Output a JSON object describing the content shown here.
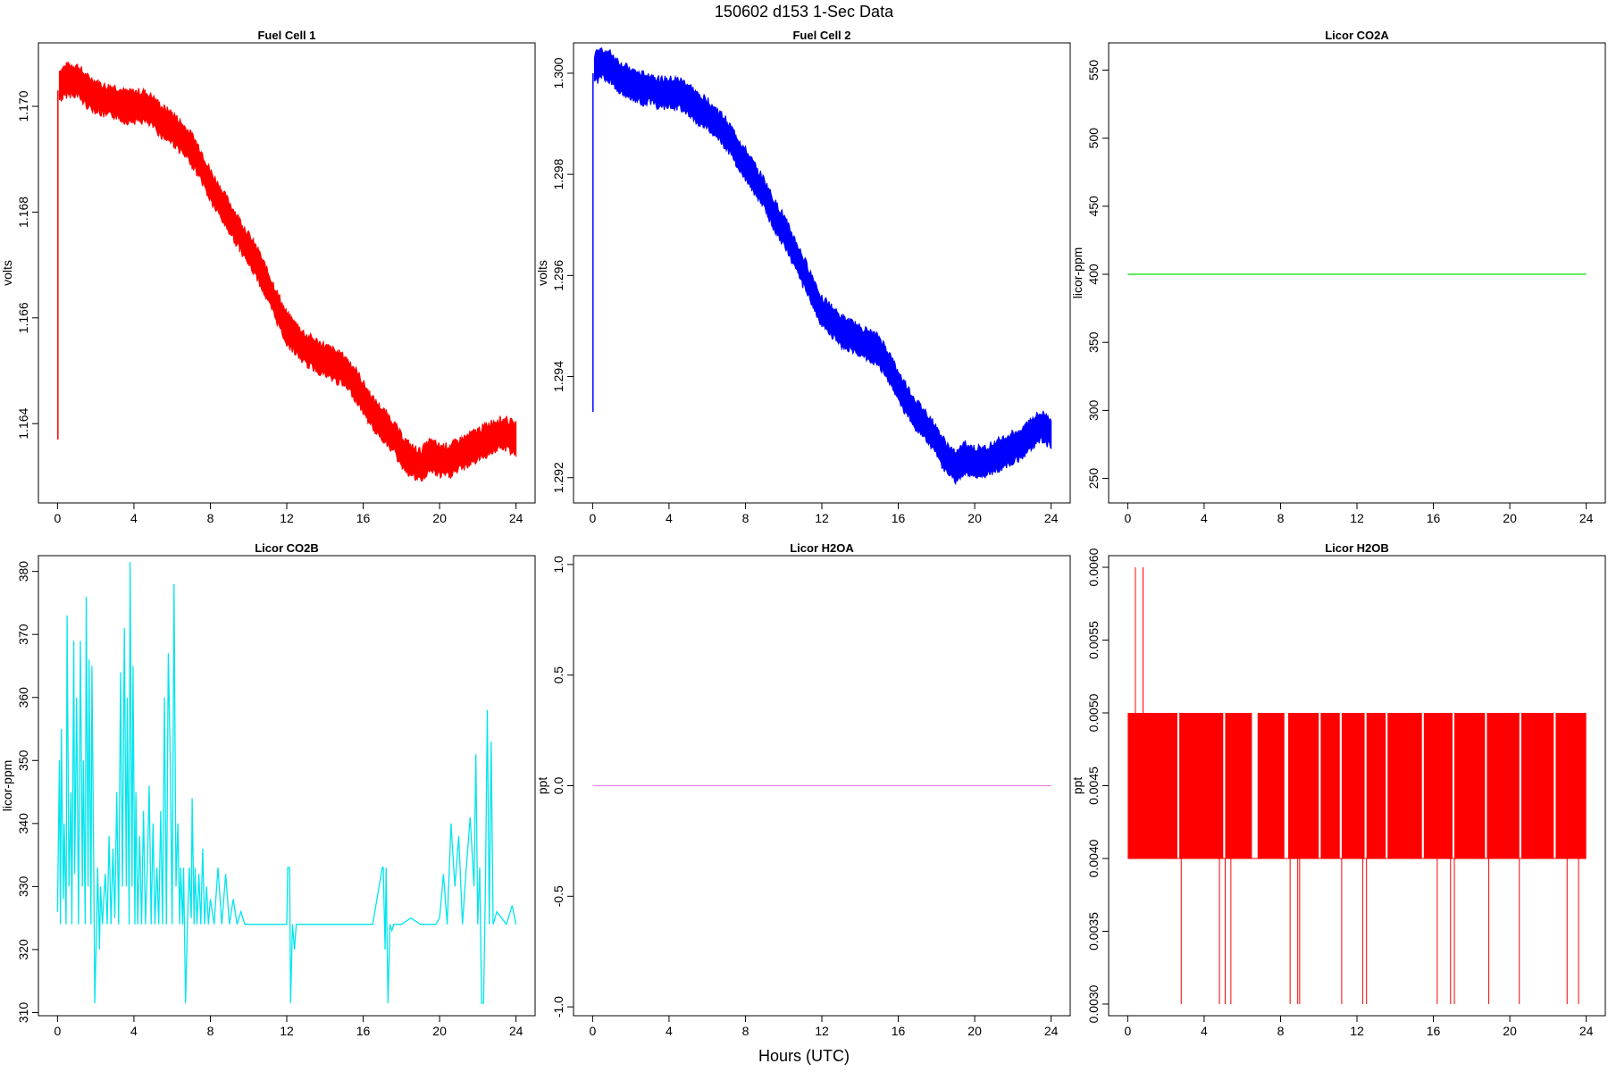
{
  "figure": {
    "title": "150602   d153   1-Sec Data",
    "xlabel": "Hours (UTC)"
  },
  "chart_data": [
    {
      "type": "line",
      "title": "Fuel Cell 1",
      "ylabel": "volts",
      "color": "#ff0000",
      "band_width": 0.0007,
      "xlim": [
        -1,
        25
      ],
      "ylim": [
        1.1625,
        1.1712
      ],
      "xticks": [
        0,
        4,
        8,
        12,
        16,
        20,
        24
      ],
      "xtick_labels": [
        "0",
        "4",
        "8",
        "12",
        "16",
        "20",
        "24"
      ],
      "yticks": [
        1.164,
        1.166,
        1.168,
        1.17
      ],
      "ytick_labels": [
        "1.164",
        "1.166",
        "1.168",
        "1.170"
      ],
      "spike": {
        "x": 0.02,
        "from": 1.1637,
        "to": 1.1703
      },
      "x": [
        0.1,
        0.5,
        1,
        1.5,
        2,
        2.5,
        3,
        3.5,
        4,
        4.5,
        5,
        5.5,
        6,
        6.5,
        7,
        7.5,
        8,
        8.5,
        9,
        9.5,
        10,
        10.5,
        11,
        11.5,
        12,
        12.5,
        13,
        13.5,
        14,
        14.5,
        15,
        15.5,
        16,
        16.5,
        17,
        17.5,
        18,
        18.5,
        19,
        19.5,
        20,
        20.5,
        21,
        21.5,
        22,
        22.5,
        23,
        23.5,
        24
      ],
      "y": [
        1.1704,
        1.1705,
        1.1705,
        1.1703,
        1.1702,
        1.1701,
        1.1701,
        1.17,
        1.17,
        1.17,
        1.1699,
        1.1697,
        1.1696,
        1.1694,
        1.1692,
        1.1689,
        1.1685,
        1.1682,
        1.1679,
        1.1676,
        1.1673,
        1.167,
        1.1666,
        1.1662,
        1.1658,
        1.1656,
        1.1654,
        1.1653,
        1.1652,
        1.1651,
        1.165,
        1.1648,
        1.1645,
        1.1642,
        1.164,
        1.1638,
        1.1635,
        1.1633,
        1.1632,
        1.1634,
        1.1633,
        1.1633,
        1.1634,
        1.1635,
        1.1636,
        1.1637,
        1.1638,
        1.1638,
        1.1637
      ]
    },
    {
      "type": "line",
      "title": "Fuel Cell 2",
      "ylabel": "volts",
      "color": "#0000ff",
      "band_width": 0.0007,
      "xlim": [
        -1,
        25
      ],
      "ylim": [
        1.2915,
        1.3006
      ],
      "xticks": [
        0,
        4,
        8,
        12,
        16,
        20,
        24
      ],
      "xtick_labels": [
        "0",
        "4",
        "8",
        "12",
        "16",
        "20",
        "24"
      ],
      "yticks": [
        1.292,
        1.294,
        1.296,
        1.298,
        1.3
      ],
      "ytick_labels": [
        "1.292",
        "1.294",
        "1.296",
        "1.298",
        "1.300"
      ],
      "spike": {
        "x": 0.02,
        "from": 1.2933,
        "to": 1.3
      },
      "x": [
        0.1,
        0.5,
        1,
        1.5,
        2,
        2.5,
        3,
        3.5,
        4,
        4.5,
        5,
        5.5,
        6,
        6.5,
        7,
        7.5,
        8,
        8.5,
        9,
        9.5,
        10,
        10.5,
        11,
        11.5,
        12,
        12.5,
        13,
        13.5,
        14,
        14.5,
        15,
        15.5,
        16,
        16.5,
        17,
        17.5,
        18,
        18.5,
        19,
        19.5,
        20,
        20.5,
        21,
        21.5,
        22,
        22.5,
        23,
        23.5,
        24
      ],
      "y": [
        1.3001,
        1.3002,
        1.3001,
        1.2999,
        1.2998,
        1.2997,
        1.2997,
        1.2996,
        1.2996,
        1.2996,
        1.2995,
        1.2993,
        1.2992,
        1.299,
        1.2988,
        1.2985,
        1.2982,
        1.2979,
        1.2976,
        1.2972,
        1.2969,
        1.2965,
        1.2961,
        1.2957,
        1.2953,
        1.2951,
        1.2949,
        1.2948,
        1.2947,
        1.2946,
        1.2945,
        1.2942,
        1.2938,
        1.2935,
        1.2932,
        1.293,
        1.2927,
        1.2924,
        1.2922,
        1.2924,
        1.2923,
        1.2923,
        1.2924,
        1.2925,
        1.2926,
        1.2927,
        1.2929,
        1.293,
        1.2929
      ]
    },
    {
      "type": "line",
      "title": "Licor CO2A",
      "ylabel": "licor-ppm",
      "color": "#00e000",
      "band_width": 0,
      "xlim": [
        -1,
        25
      ],
      "ylim": [
        232,
        570
      ],
      "xticks": [
        0,
        4,
        8,
        12,
        16,
        20,
        24
      ],
      "xtick_labels": [
        "0",
        "4",
        "8",
        "12",
        "16",
        "20",
        "24"
      ],
      "yticks": [
        250,
        300,
        350,
        400,
        450,
        500,
        550
      ],
      "ytick_labels": [
        "250",
        "300",
        "350",
        "400",
        "450",
        "500",
        "550"
      ],
      "x": [
        0,
        24
      ],
      "y": [
        400,
        400
      ]
    },
    {
      "type": "line",
      "title": "Licor CO2B",
      "ylabel": "licor-ppm",
      "color": "#00e5ee",
      "band_width": 0,
      "xlim": [
        -1,
        25
      ],
      "ylim": [
        309.5,
        382.5
      ],
      "xticks": [
        0,
        4,
        8,
        12,
        16,
        20,
        24
      ],
      "xtick_labels": [
        "0",
        "4",
        "8",
        "12",
        "16",
        "20",
        "24"
      ],
      "yticks": [
        310,
        320,
        330,
        340,
        350,
        360,
        370,
        380
      ],
      "ytick_labels": [
        "310",
        "320",
        "330",
        "340",
        "350",
        "360",
        "370",
        "380"
      ],
      "x": [
        0,
        0.1,
        0.15,
        0.2,
        0.3,
        0.35,
        0.45,
        0.5,
        0.6,
        0.7,
        0.75,
        0.85,
        0.9,
        1.0,
        1.1,
        1.2,
        1.3,
        1.35,
        1.45,
        1.5,
        1.6,
        1.65,
        1.75,
        1.8,
        1.9,
        1.95,
        2.05,
        2.1,
        2.2,
        2.25,
        2.35,
        2.5,
        2.6,
        2.7,
        2.8,
        2.9,
        3.0,
        3.1,
        3.2,
        3.3,
        3.4,
        3.5,
        3.6,
        3.65,
        3.75,
        3.8,
        3.9,
        3.95,
        4.05,
        4.1,
        4.2,
        4.3,
        4.4,
        4.5,
        4.6,
        4.7,
        4.8,
        4.9,
        5.0,
        5.1,
        5.2,
        5.3,
        5.4,
        5.5,
        5.6,
        5.7,
        5.8,
        5.9,
        6.0,
        6.1,
        6.2,
        6.3,
        6.4,
        6.45,
        6.55,
        6.6,
        6.7,
        6.8,
        6.9,
        7.0,
        7.05,
        7.15,
        7.2,
        7.3,
        7.4,
        7.5,
        7.6,
        7.7,
        7.8,
        7.9,
        8.0,
        8.2,
        8.4,
        8.6,
        8.8,
        9.0,
        9.2,
        9.4,
        9.6,
        9.8,
        10.0,
        10.4,
        10.8,
        11.2,
        11.6,
        12.0,
        12.05,
        12.15,
        12.2,
        12.3,
        12.4,
        12.5,
        12.6,
        13.0,
        13.5,
        14.0,
        14.5,
        15.0,
        15.5,
        16.0,
        16.5,
        17.0,
        17.05,
        17.15,
        17.2,
        17.3,
        17.4,
        17.5,
        17.6,
        17.8,
        18.0,
        18.5,
        19.0,
        19.5,
        19.8,
        20.0,
        20.2,
        20.4,
        20.6,
        20.8,
        21.0,
        21.2,
        21.4,
        21.6,
        21.8,
        21.9,
        22.0,
        22.1,
        22.2,
        22.3,
        22.4,
        22.5,
        22.6,
        22.7,
        22.8,
        23.0,
        23.5,
        23.8,
        24.0
      ],
      "y": [
        326,
        350,
        324,
        355,
        328,
        340,
        324,
        373,
        330,
        345,
        324,
        369,
        332,
        360,
        324,
        369,
        330,
        350,
        324,
        376,
        330,
        366,
        324,
        365,
        332,
        311.5,
        324,
        333,
        320,
        330,
        324,
        332,
        324,
        338,
        324,
        336,
        325,
        345,
        324,
        364,
        330,
        371,
        330,
        360,
        324,
        381.5,
        330,
        365,
        324,
        345,
        324,
        338,
        324,
        342,
        324,
        333,
        346,
        324,
        340,
        324,
        333,
        324,
        342,
        324,
        360,
        324,
        367,
        350,
        324,
        378,
        330,
        340,
        324,
        333,
        324,
        333,
        311.5,
        324,
        333,
        325,
        344,
        324,
        333,
        324,
        332,
        324,
        336,
        324,
        330,
        324,
        328,
        324,
        333,
        324,
        332,
        324,
        328,
        324,
        326,
        324,
        324,
        324,
        324,
        324,
        324,
        324,
        333,
        333,
        311.5,
        324,
        320,
        324,
        324,
        324,
        324,
        324,
        324,
        324,
        324,
        324,
        324,
        333,
        333,
        320,
        333,
        311.5,
        324,
        323,
        324,
        324,
        324,
        325,
        324,
        324,
        324,
        325,
        332,
        324,
        340,
        330,
        338,
        324,
        333,
        341,
        330,
        351,
        324,
        333,
        311.5,
        311.5,
        330,
        358,
        324,
        353,
        324,
        326,
        324,
        327,
        324
      ],
      "x_norm_pairs": true
    },
    {
      "type": "line",
      "title": "Licor H2OA",
      "ylabel": "ppt",
      "color": "#dd88dd",
      "band_width": 0,
      "xlim": [
        -1,
        25
      ],
      "ylim": [
        -1.04,
        1.04
      ],
      "xticks": [
        0,
        4,
        8,
        12,
        16,
        20,
        24
      ],
      "xtick_labels": [
        "0",
        "4",
        "8",
        "12",
        "16",
        "20",
        "24"
      ],
      "yticks": [
        -1.0,
        -0.5,
        0.0,
        0.5,
        1.0
      ],
      "ytick_labels": [
        "-1.0",
        "-0.5",
        "0.0",
        "0.5",
        "1.0"
      ],
      "x": [
        0,
        24
      ],
      "y": [
        0,
        0
      ]
    },
    {
      "type": "line",
      "title": "Licor H2OB",
      "ylabel": "ppt",
      "color": "#ff0000",
      "band_width": 0,
      "xlim": [
        -1,
        25
      ],
      "ylim": [
        0.00292,
        0.00608
      ],
      "xticks": [
        0,
        4,
        8,
        12,
        16,
        20,
        24
      ],
      "xtick_labels": [
        "0",
        "4",
        "8",
        "12",
        "16",
        "20",
        "24"
      ],
      "yticks": [
        0.003,
        0.0035,
        0.004,
        0.0045,
        0.005,
        0.0055,
        0.006
      ],
      "ytick_labels": [
        "0.0030",
        "0.0035",
        "0.0040",
        "0.0045",
        "0.0050",
        "0.0055",
        "0.0060"
      ],
      "fill_band": [
        0.004,
        0.005
      ],
      "fill_segments": [
        [
          0,
          2.6
        ],
        [
          2.7,
          5.0
        ],
        [
          5.1,
          6.5
        ],
        [
          6.8,
          8.2
        ],
        [
          8.4,
          10.0
        ],
        [
          10.1,
          11.1
        ],
        [
          11.2,
          12.4
        ],
        [
          12.5,
          13.5
        ],
        [
          13.6,
          15.4
        ],
        [
          15.5,
          17.0
        ],
        [
          17.1,
          18.7
        ],
        [
          18.8,
          20.5
        ],
        [
          20.6,
          22.3
        ],
        [
          22.4,
          24.0
        ]
      ],
      "spikes": [
        [
          0.4,
          0.006
        ],
        [
          0.8,
          0.006
        ],
        [
          2.8,
          0.003
        ],
        [
          4.8,
          0.003
        ],
        [
          5.1,
          0.003
        ],
        [
          5.4,
          0.003
        ],
        [
          8.5,
          0.003
        ],
        [
          8.9,
          0.003
        ],
        [
          9.0,
          0.003
        ],
        [
          11.2,
          0.003
        ],
        [
          12.3,
          0.003
        ],
        [
          12.5,
          0.003
        ],
        [
          16.2,
          0.003
        ],
        [
          16.9,
          0.003
        ],
        [
          17.1,
          0.003
        ],
        [
          18.9,
          0.003
        ],
        [
          20.5,
          0.003
        ],
        [
          23.0,
          0.003
        ],
        [
          23.6,
          0.003
        ]
      ]
    }
  ]
}
